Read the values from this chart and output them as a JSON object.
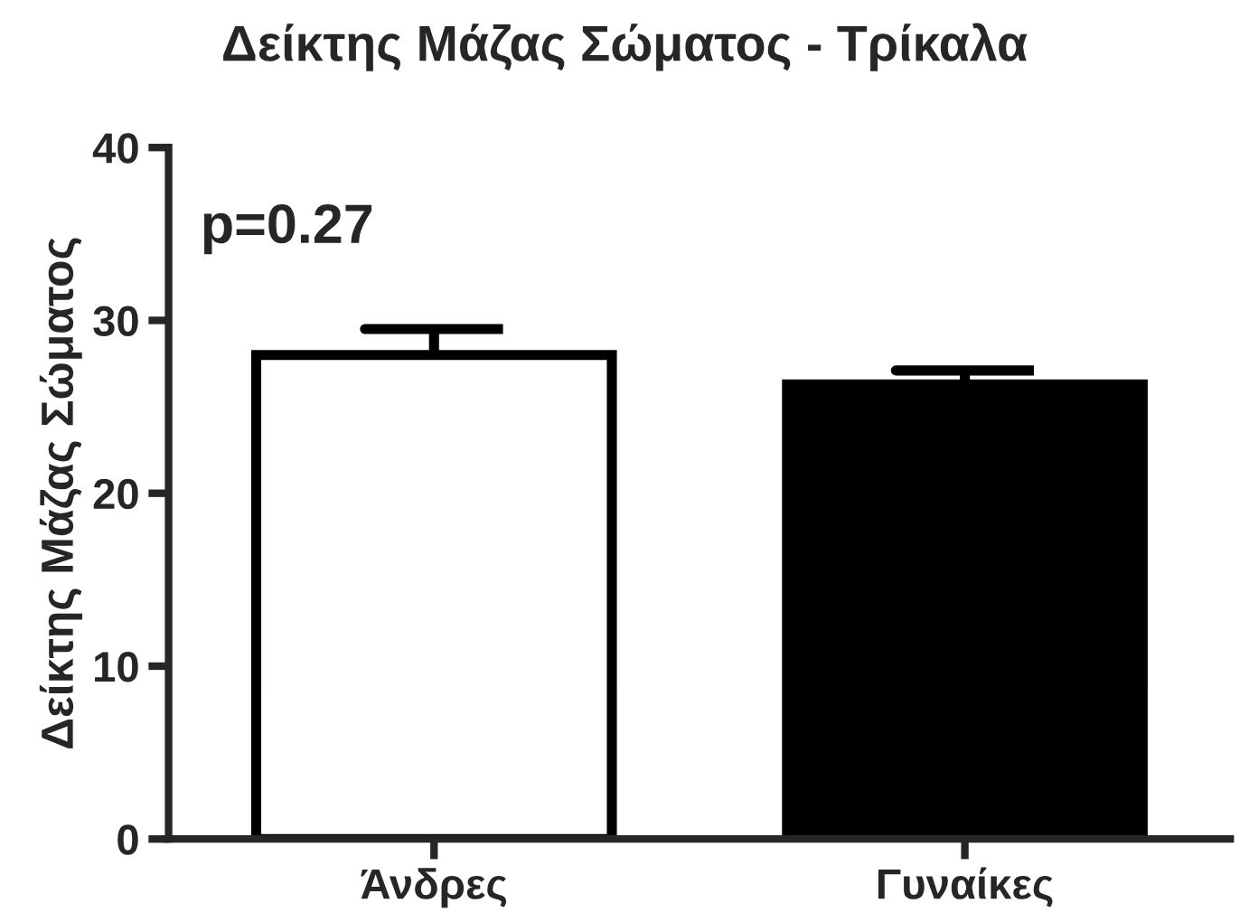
{
  "chart_data": {
    "type": "bar",
    "title": "Δείκτης Μάζας Σώματος - Τρίκαλα",
    "ylabel": "Δείκτης Μάζας Σώματος",
    "categories": [
      "Άνδρες",
      "Γυναίκες"
    ],
    "values": [
      28.0,
      26.3
    ],
    "colors": [
      "#ffffff",
      "#000000"
    ],
    "errors": [
      [
        28.0,
        29.5
      ],
      [
        26.3,
        27.1
      ]
    ],
    "ylim": [
      0,
      40
    ],
    "yticks": [
      0,
      10,
      20,
      30,
      40
    ],
    "annotations": [
      "p=0.27"
    ]
  }
}
